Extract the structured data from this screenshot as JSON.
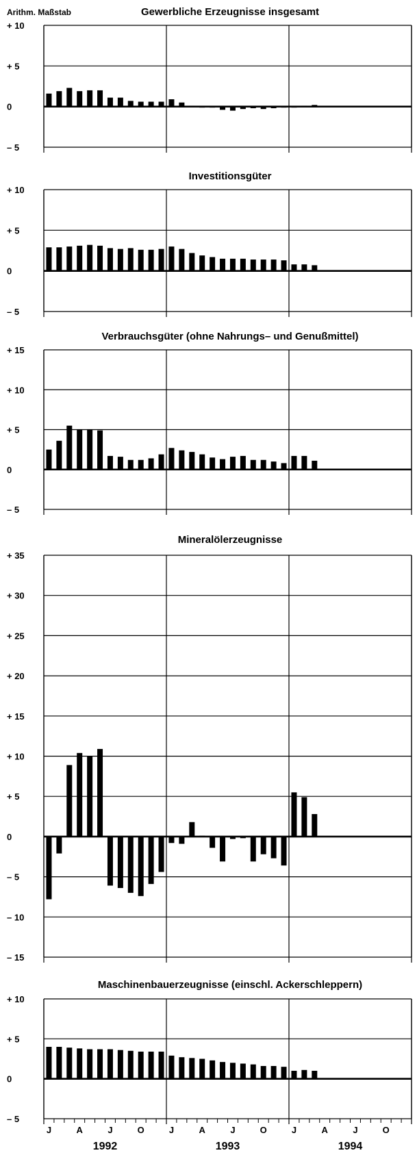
{
  "axis_unit_label": "Arithm. Maßstab",
  "x_axis": {
    "month_labels": [
      "J",
      "A",
      "J",
      "O",
      "J",
      "A",
      "J",
      "O",
      "J",
      "A",
      "J",
      "O"
    ],
    "years": [
      "1992",
      "1993",
      "1994"
    ]
  },
  "chart_data": [
    {
      "type": "bar",
      "title": "Gewerbliche Erzeugnisse insgesamt",
      "ylim": [
        -5,
        10
      ],
      "yticks": [
        "+ 10",
        "+ 5",
        "0",
        "– 5"
      ],
      "ytick_values": [
        10,
        5,
        0,
        -5
      ],
      "grid": true,
      "x": "months Jan 1992 – Dec 1994",
      "values": [
        1.6,
        1.9,
        2.3,
        1.9,
        2.0,
        2.0,
        1.1,
        1.1,
        0.7,
        0.6,
        0.6,
        0.6,
        0.9,
        0.5,
        0.1,
        0.0,
        -0.1,
        -0.4,
        -0.5,
        -0.3,
        -0.2,
        -0.3,
        -0.2,
        -0.1,
        -0.1,
        0.1,
        0.2
      ]
    },
    {
      "type": "bar",
      "title": "Investitionsgüter",
      "ylim": [
        -5,
        10
      ],
      "yticks": [
        "+ 10",
        "+ 5",
        "0",
        "– 5"
      ],
      "ytick_values": [
        10,
        5,
        0,
        -5
      ],
      "grid": true,
      "values": [
        2.9,
        2.9,
        3.0,
        3.1,
        3.2,
        3.1,
        2.8,
        2.7,
        2.8,
        2.6,
        2.6,
        2.7,
        3.0,
        2.7,
        2.2,
        1.9,
        1.7,
        1.5,
        1.5,
        1.5,
        1.4,
        1.4,
        1.4,
        1.3,
        0.8,
        0.8,
        0.7
      ]
    },
    {
      "type": "bar",
      "title": "Verbrauchsgüter (ohne Nahrungs– und Genußmittel)",
      "ylim": [
        -5,
        15
      ],
      "yticks": [
        "+ 15",
        "+ 10",
        "+ 5",
        "0",
        "– 5"
      ],
      "ytick_values": [
        15,
        10,
        5,
        0,
        -5
      ],
      "grid": true,
      "values": [
        2.5,
        3.6,
        5.5,
        5.0,
        5.0,
        4.9,
        1.7,
        1.6,
        1.2,
        1.2,
        1.4,
        1.9,
        2.7,
        2.4,
        2.2,
        1.9,
        1.5,
        1.3,
        1.6,
        1.7,
        1.2,
        1.2,
        1.0,
        0.8,
        1.7,
        1.7,
        1.1
      ]
    },
    {
      "type": "bar",
      "title": "Mineralölerzeugnisse",
      "ylim": [
        -15,
        35
      ],
      "yticks": [
        "+ 35",
        "+ 30",
        "+ 25",
        "+ 20",
        "+ 15",
        "+ 10",
        "+ 5",
        "0",
        "– 5",
        "– 10",
        "– 15"
      ],
      "ytick_values": [
        35,
        30,
        25,
        20,
        15,
        10,
        5,
        0,
        -5,
        -10,
        -15
      ],
      "grid": true,
      "values": [
        -7.8,
        -2.1,
        8.9,
        10.4,
        10.0,
        10.9,
        -6.1,
        -6.4,
        -7.0,
        -7.4,
        -5.9,
        -4.4,
        -0.8,
        -0.9,
        1.8,
        0.1,
        -1.4,
        -3.1,
        -0.3,
        -0.2,
        -3.1,
        -2.2,
        -2.7,
        -3.6,
        5.5,
        4.9,
        2.8
      ]
    },
    {
      "type": "bar",
      "title": "Maschinenbauerzeugnisse (einschl. Ackerschleppern)",
      "ylim": [
        -5,
        10
      ],
      "yticks": [
        "+ 10",
        "+ 5",
        "0",
        "– 5"
      ],
      "ytick_values": [
        10,
        5,
        0,
        -5
      ],
      "grid": true,
      "values": [
        4.0,
        4.0,
        3.9,
        3.8,
        3.7,
        3.7,
        3.7,
        3.6,
        3.5,
        3.4,
        3.4,
        3.4,
        2.9,
        2.7,
        2.6,
        2.5,
        2.3,
        2.1,
        2.0,
        1.9,
        1.8,
        1.6,
        1.6,
        1.5,
        1.0,
        1.1,
        1.0
      ]
    }
  ]
}
